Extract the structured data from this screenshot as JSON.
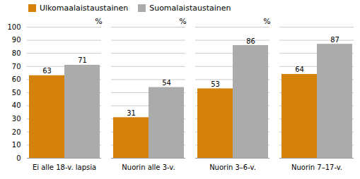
{
  "chart_data": {
    "type": "bar",
    "ylabel": "%",
    "categories": [
      "Ei alle 18-v. lapsia",
      "Nuorin alle 3-v.",
      "Nuorin 3–6-v.",
      "Nuorin 7–17-v."
    ],
    "series": [
      {
        "name": "Ulkomaalaistaustainen",
        "color": "#D4820A",
        "values": [
          63,
          31,
          53,
          64
        ]
      },
      {
        "name": "Suomalaistaustainen",
        "color": "#ABABAB",
        "values": [
          71,
          54,
          86,
          87
        ]
      }
    ],
    "ylim": [
      0,
      100
    ],
    "yticks": [
      0,
      10,
      20,
      30,
      40,
      50,
      60,
      70,
      80,
      90,
      100
    ],
    "grid": true,
    "legend": "upper left",
    "data_labels": true
  }
}
